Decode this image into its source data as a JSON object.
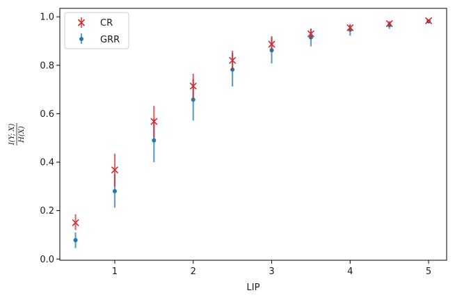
{
  "chart_data": {
    "type": "scatter",
    "title": "",
    "xlabel": "LIP",
    "ylabel_numerator": "I(Y; X)",
    "ylabel_denominator": "H(X)",
    "xlim": [
      0.3,
      5.23
    ],
    "ylim": [
      -0.005,
      1.035
    ],
    "xticks": [
      1,
      2,
      3,
      4,
      5
    ],
    "xtick_labels": [
      "1",
      "2",
      "3",
      "4",
      "5"
    ],
    "yticks": [
      0.0,
      0.2,
      0.4,
      0.6,
      0.8,
      1.0
    ],
    "ytick_labels": [
      "0.0",
      "0.2",
      "0.4",
      "0.6",
      "0.8",
      "1.0"
    ],
    "grid": false,
    "legend_position": "top-left",
    "x": [
      0.5,
      1.0,
      1.5,
      2.0,
      2.5,
      3.0,
      3.5,
      4.0,
      4.5,
      5.0
    ],
    "series": [
      {
        "name": "CR",
        "marker": "x",
        "color": "#d62728",
        "values": [
          0.15,
          0.368,
          0.568,
          0.714,
          0.82,
          0.887,
          0.93,
          0.955,
          0.972,
          0.984
        ],
        "err_low": [
          0.12,
          0.3,
          0.5,
          0.66,
          0.78,
          0.855,
          0.908,
          0.94,
          0.96,
          0.978
        ],
        "err_high": [
          0.185,
          0.435,
          0.632,
          0.765,
          0.86,
          0.92,
          0.95,
          0.968,
          0.982,
          0.99
        ]
      },
      {
        "name": "GRR",
        "marker": "o",
        "color": "#1f77b4",
        "values": [
          0.078,
          0.28,
          0.49,
          0.658,
          0.782,
          0.862,
          0.915,
          0.947,
          0.966,
          0.981
        ],
        "err_low": [
          0.045,
          0.212,
          0.4,
          0.572,
          0.712,
          0.808,
          0.878,
          0.922,
          0.95,
          0.973
        ],
        "err_high": [
          0.11,
          0.35,
          0.58,
          0.742,
          0.85,
          0.915,
          0.952,
          0.97,
          0.98,
          0.988
        ]
      }
    ]
  }
}
